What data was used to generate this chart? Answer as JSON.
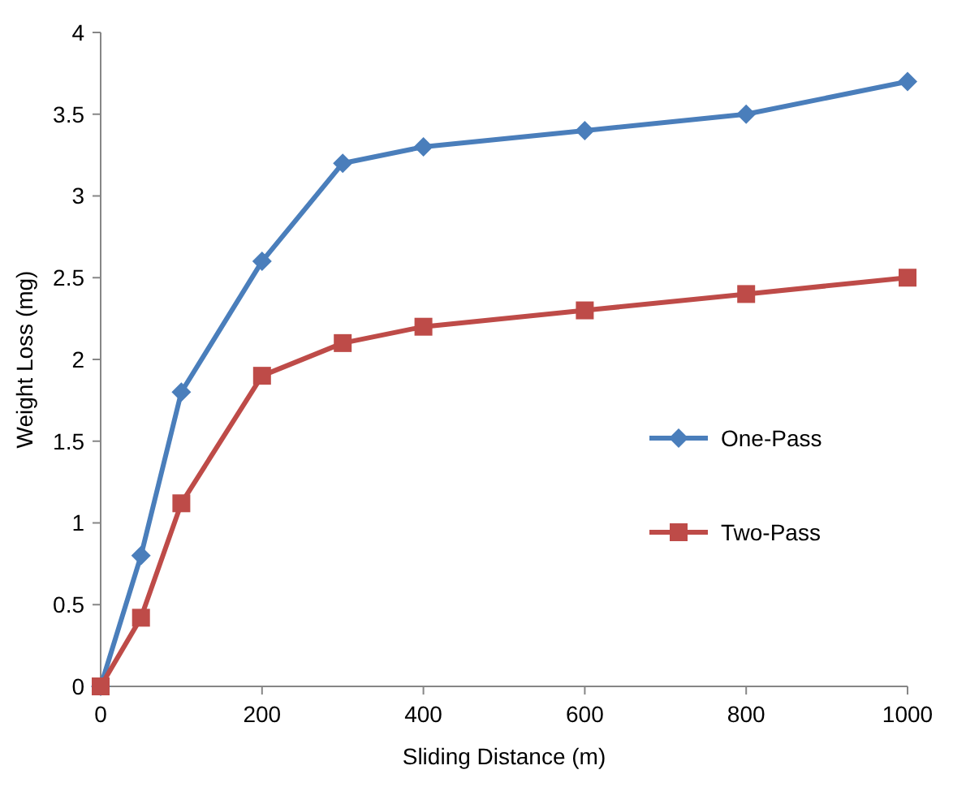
{
  "chart_data": {
    "type": "line",
    "xlabel": "Sliding Distance (m)",
    "ylabel": "Weight Loss (mg)",
    "x": [
      0,
      50,
      100,
      200,
      300,
      400,
      600,
      800,
      1000
    ],
    "series": [
      {
        "name": "One-Pass",
        "color": "#4a7ebb",
        "marker": "diamond",
        "values": [
          0,
          0.8,
          1.8,
          2.6,
          3.2,
          3.3,
          3.4,
          3.5,
          3.7
        ]
      },
      {
        "name": "Two-Pass",
        "color": "#be4b48",
        "marker": "square",
        "values": [
          0,
          0.42,
          1.12,
          1.9,
          2.1,
          2.2,
          2.3,
          2.4,
          2.5
        ]
      }
    ],
    "xlim": [
      0,
      1000
    ],
    "xticks": [
      0,
      200,
      400,
      600,
      800,
      1000
    ],
    "ylim": [
      0,
      4
    ],
    "yticks": [
      0,
      0.5,
      1,
      1.5,
      2,
      2.5,
      3,
      3.5,
      4
    ],
    "grid": false,
    "legend": "right",
    "line_style": "solid"
  }
}
